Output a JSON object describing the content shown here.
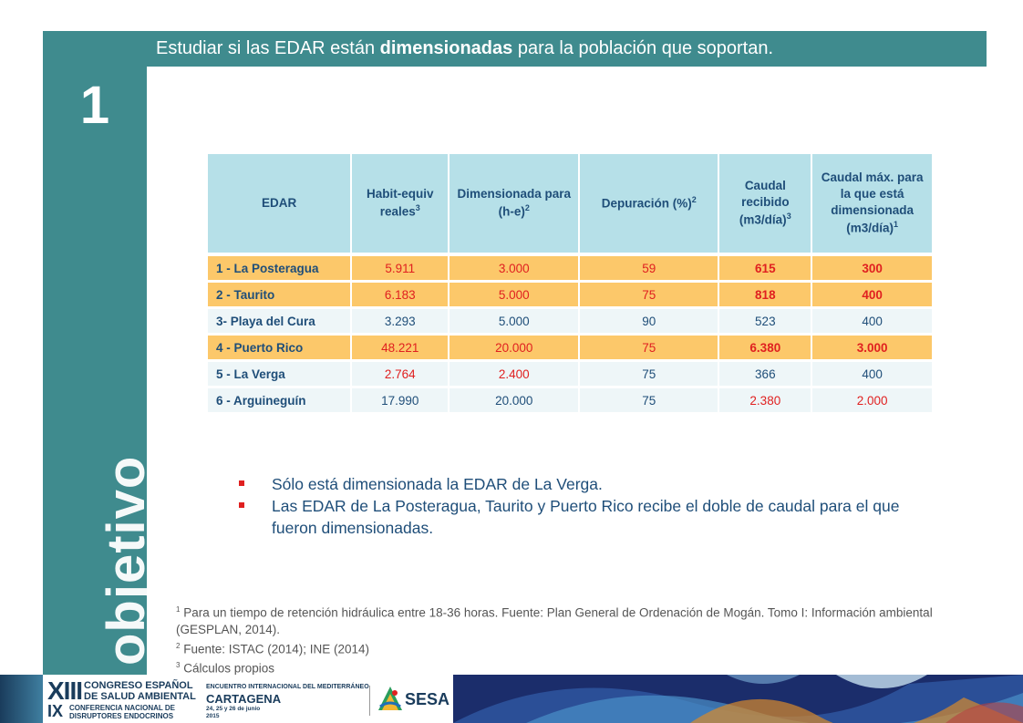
{
  "sidebar": {
    "number": "1",
    "word": "objetivo"
  },
  "header": {
    "text_before": "Estudiar si las EDAR están ",
    "text_bold": "dimensionadas",
    "text_after": " para la población que soportan."
  },
  "table": {
    "headers": [
      {
        "text": "EDAR",
        "sup": ""
      },
      {
        "text": "Habit-equiv reales",
        "sup": "3"
      },
      {
        "text": "Dimensionada para (h-e)",
        "sup": "2"
      },
      {
        "text": "Depuración (%)",
        "sup": "2"
      },
      {
        "text": "Caudal recibido (m3/día)",
        "sup": "3"
      },
      {
        "text": "Caudal máx. para la que está dimensionada (m3/día)",
        "sup": "1"
      }
    ],
    "rows": [
      {
        "name": "1 - La Posteragua",
        "habit": "5.911",
        "dim": "3.000",
        "dep": "59",
        "caudal": "615",
        "caudal_max": "300"
      },
      {
        "name": "2 - Taurito",
        "habit": "6.183",
        "dim": "5.000",
        "dep": "75",
        "caudal": "818",
        "caudal_max": "400"
      },
      {
        "name": "3- Playa del Cura",
        "habit": "3.293",
        "dim": "5.000",
        "dep": "90",
        "caudal": "523",
        "caudal_max": "400"
      },
      {
        "name": "4 - Puerto Rico",
        "habit": "48.221",
        "dim": "20.000",
        "dep": "75",
        "caudal": "6.380",
        "caudal_max": "3.000"
      },
      {
        "name": "5 - La Verga",
        "habit": "2.764",
        "dim": "2.400",
        "dep": "75",
        "caudal": "366",
        "caudal_max": "400"
      },
      {
        "name": "6 - Arguineguín",
        "habit": "17.990",
        "dim": "20.000",
        "dep": "75",
        "caudal": "2.380",
        "caudal_max": "2.000"
      }
    ]
  },
  "bullets": [
    "Sólo está dimensionada la EDAR de La Verga.",
    "Las EDAR de La Posteragua, Taurito y Puerto Rico recibe el doble de caudal para el que fueron dimensionadas."
  ],
  "footnotes": [
    {
      "sup": "1",
      "text": " Para un tiempo de retención hidráulica entre 18-36 horas. Fuente: Plan General de Ordenación de Mogán. Tomo I: Información ambiental (GESPLAN, 2014)."
    },
    {
      "sup": "2",
      "text": " Fuente: ISTAC (2014); INE (2014)"
    },
    {
      "sup": "3",
      "text": " Cálculos propios"
    }
  ],
  "footer": {
    "congress_xiii": "XIII",
    "congress_l1": "CONGRESO ESPAÑOL",
    "congress_l2": "DE SALUD AMBIENTAL",
    "conf_ix": "IX",
    "conf_l1": "CONFERENCIA NACIONAL DE",
    "conf_l2": "DISRUPTORES ENDOCRINOS",
    "enc_l1": "ENCUENTRO INTERNACIONAL DEL MEDITERRÁNEO",
    "enc_l2": "CARTAGENA",
    "enc_l3": "24, 25 y 26 de junio",
    "enc_l4": "2015",
    "sesa": "SESA"
  },
  "colors": {
    "teal": "#3f8b8e",
    "header_cell": "#b6e0e8",
    "orange_row": "#fcc86a",
    "light_row": "#eef6f8",
    "text_blue": "#1f4e79",
    "red": "#e02020"
  }
}
